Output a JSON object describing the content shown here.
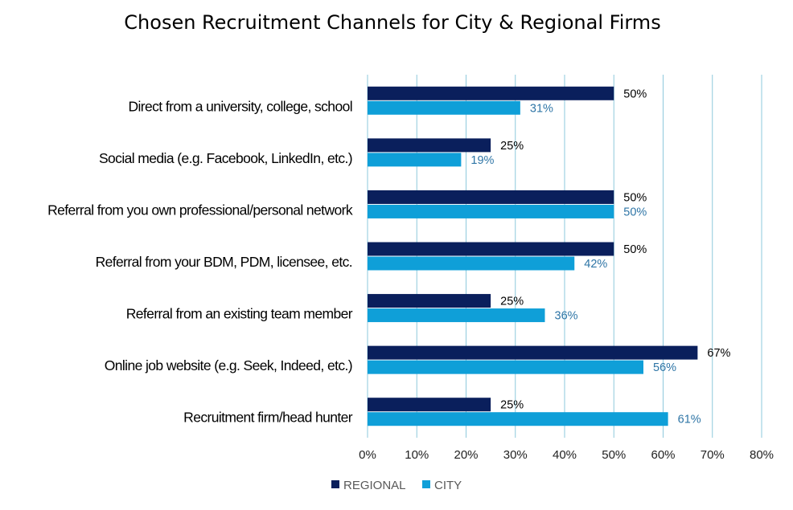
{
  "chart_data": {
    "type": "bar",
    "orientation": "horizontal",
    "title": "Chosen Recruitment Channels for City & Regional Firms",
    "xlabel": "",
    "ylabel": "",
    "categories": [
      "Direct from a university, college, school",
      "Social media (e.g. Facebook, LinkedIn, etc.)",
      "Referral from you own professional/personal network",
      "Referral from your BDM, PDM, licensee, etc.",
      "Referral from an existing team member",
      "Online job website (e.g. Seek, Indeed, etc.)",
      "Recruitment firm/head hunter"
    ],
    "series": [
      {
        "name": "REGIONAL",
        "color": "#0a1f5c",
        "label_color": "#000000",
        "values": [
          50,
          25,
          50,
          50,
          25,
          67,
          25
        ]
      },
      {
        "name": "CITY",
        "color": "#0f9fd8",
        "label_color": "#2e75a6",
        "values": [
          31,
          19,
          50,
          42,
          36,
          56,
          61
        ]
      }
    ],
    "xlim": [
      0,
      80
    ],
    "xticks": [
      "0%",
      "10%",
      "20%",
      "30%",
      "40%",
      "50%",
      "60%",
      "70%",
      "80%"
    ],
    "value_suffix": "%",
    "grid": "vertical",
    "grid_color": "#8ec9dc",
    "legend": "bottom"
  }
}
